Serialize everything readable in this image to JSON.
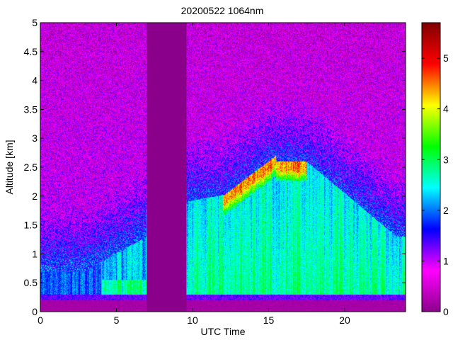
{
  "chart_data": {
    "type": "heatmap",
    "title": "20200522 1064nm",
    "xlabel": "UTC Time",
    "ylabel": "Altitude [km]",
    "xlim": [
      0,
      24
    ],
    "ylim": [
      0,
      5
    ],
    "x_ticks": [
      "0",
      "5",
      "10",
      "15",
      "20"
    ],
    "y_ticks": [
      "0",
      "0.5",
      "1",
      "1.5",
      "2",
      "2.5",
      "3",
      "3.5",
      "4",
      "4.5",
      "5"
    ],
    "colorbar": {
      "ticks": [
        "0",
        "1",
        "2",
        "3",
        "4",
        "5"
      ],
      "range": [
        0,
        5.7
      ],
      "colormap": [
        "#8b008b",
        "#ff00ff",
        "#0000ff",
        "#00ffff",
        "#00ff00",
        "#ffff00",
        "#ff0000",
        "#7f0000"
      ]
    },
    "missing_data_x_range": [
      7.0,
      9.6
    ],
    "fill_color": "#8b008b"
  }
}
